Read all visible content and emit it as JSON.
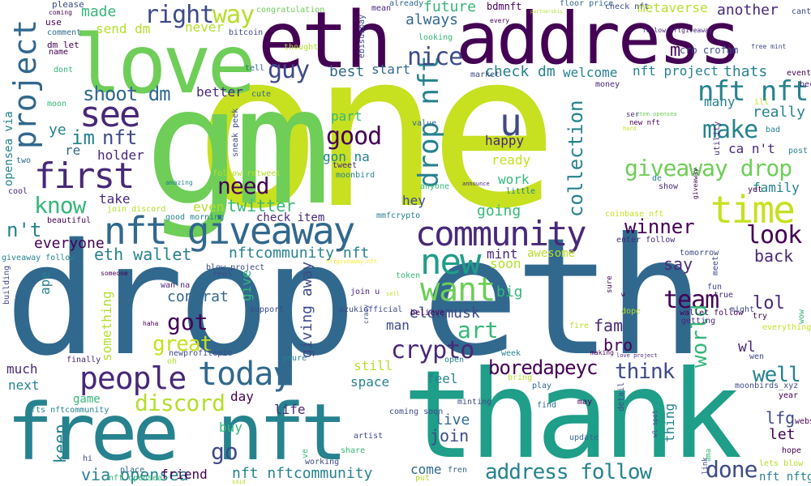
{
  "colors": {
    "background": "#ffffff",
    "palette": [
      "#440154",
      "#482878",
      "#3e4a89",
      "#31688e",
      "#26828e",
      "#1f9e89",
      "#35b779",
      "#6ece58",
      "#b5de2b",
      "#c7e020",
      "#fde725"
    ]
  },
  "words": [
    {
      "text": "one"
    },
    {
      "text": "gm"
    },
    {
      "text": "drop"
    },
    {
      "text": "eth"
    },
    {
      "text": "thank"
    },
    {
      "text": "address"
    },
    {
      "text": "eth"
    },
    {
      "text": "love"
    },
    {
      "text": "free nft"
    },
    {
      "text": "nft giveaway"
    },
    {
      "text": "community"
    },
    {
      "text": "time"
    },
    {
      "text": "people"
    },
    {
      "text": "today"
    },
    {
      "text": "first"
    },
    {
      "text": "new"
    },
    {
      "text": "want"
    },
    {
      "text": "see"
    },
    {
      "text": "project"
    },
    {
      "text": "nft nft"
    },
    {
      "text": "drop nft"
    },
    {
      "text": "u"
    },
    {
      "text": "giveaway drop"
    },
    {
      "text": "collection"
    },
    {
      "text": "right"
    },
    {
      "text": "way"
    },
    {
      "text": "crypto"
    },
    {
      "text": "make"
    },
    {
      "text": "good"
    },
    {
      "text": "look"
    },
    {
      "text": "team"
    },
    {
      "text": "know"
    },
    {
      "text": "need"
    },
    {
      "text": "guy"
    },
    {
      "text": "nice"
    },
    {
      "text": "shoot dm"
    },
    {
      "text": "im"
    },
    {
      "text": "nft"
    },
    {
      "text": "done"
    },
    {
      "text": "address follow"
    },
    {
      "text": "art"
    },
    {
      "text": "boredapeyc"
    },
    {
      "text": "go"
    },
    {
      "text": "discord"
    },
    {
      "text": "world"
    },
    {
      "text": "think"
    },
    {
      "text": "well"
    },
    {
      "text": "got"
    },
    {
      "text": "great"
    },
    {
      "text": "twitter"
    },
    {
      "text": "winner"
    },
    {
      "text": "n't"
    },
    {
      "text": "eth wallet"
    },
    {
      "text": "everyone"
    },
    {
      "text": "join"
    },
    {
      "text": "live"
    },
    {
      "text": "keep"
    },
    {
      "text": "via opensea"
    },
    {
      "text": "giving away"
    },
    {
      "text": "elonmusk"
    },
    {
      "text": "congrat"
    },
    {
      "text": "nftcommunity nft"
    },
    {
      "text": "nft nftcommunity"
    },
    {
      "text": "bro"
    },
    {
      "text": "fam"
    },
    {
      "text": "lol"
    },
    {
      "text": "say"
    },
    {
      "text": "back"
    },
    {
      "text": "lfg"
    },
    {
      "text": "let"
    },
    {
      "text": "wl"
    },
    {
      "text": "really"
    },
    {
      "text": "many"
    },
    {
      "text": "family"
    },
    {
      "text": "ca n't"
    },
    {
      "text": "thats"
    },
    {
      "text": "always"
    },
    {
      "text": "future"
    },
    {
      "text": "made"
    },
    {
      "text": "send dm"
    },
    {
      "text": "never"
    },
    {
      "text": "metaverse"
    },
    {
      "text": "another"
    },
    {
      "text": "check dm"
    },
    {
      "text": "welcome"
    },
    {
      "text": "nft project"
    },
    {
      "text": "best"
    },
    {
      "text": "start"
    },
    {
      "text": "better"
    },
    {
      "text": "holder"
    },
    {
      "text": "take"
    },
    {
      "text": "ye"
    },
    {
      "text": "re"
    },
    {
      "text": "hey"
    },
    {
      "text": "going"
    },
    {
      "text": "work"
    },
    {
      "text": "ready"
    },
    {
      "text": "happy"
    },
    {
      "text": "part"
    },
    {
      "text": "gon na"
    },
    {
      "text": "check item"
    },
    {
      "text": "mint"
    },
    {
      "text": "awesome"
    },
    {
      "text": "soon"
    },
    {
      "text": "big"
    },
    {
      "text": "give"
    },
    {
      "text": "something"
    },
    {
      "text": "ape"
    },
    {
      "text": "opensea via"
    },
    {
      "text": "man"
    },
    {
      "text": "still"
    },
    {
      "text": "space"
    },
    {
      "text": "feel"
    },
    {
      "text": "day"
    },
    {
      "text": "life"
    },
    {
      "text": "buy"
    },
    {
      "text": "friend"
    },
    {
      "text": "game"
    },
    {
      "text": "next"
    },
    {
      "text": "much"
    },
    {
      "text": "come"
    },
    {
      "text": "thing"
    },
    {
      "text": "even"
    },
    {
      "text": "m"
    },
    {
      "text": "cro crofam"
    },
    {
      "text": "bdmnft"
    },
    {
      "text": "please"
    },
    {
      "text": "comment"
    },
    {
      "text": "dm let"
    },
    {
      "text": "name"
    },
    {
      "text": "use"
    },
    {
      "text": "moon"
    },
    {
      "text": "dont"
    },
    {
      "text": "two"
    },
    {
      "text": "cool"
    },
    {
      "text": "beautiful"
    },
    {
      "text": "giveaway follow"
    },
    {
      "text": "building"
    },
    {
      "text": "finally"
    },
    {
      "text": "nfts nftcommunity"
    },
    {
      "text": "nft opensea"
    },
    {
      "text": "mean"
    },
    {
      "text": "already"
    },
    {
      "text": "congratulation"
    },
    {
      "text": "bitcoin"
    },
    {
      "text": "thought"
    },
    {
      "text": "tell"
    },
    {
      "text": "looking"
    },
    {
      "text": "ebisusbay"
    },
    {
      "text": "market"
    },
    {
      "text": "value"
    },
    {
      "text": "tweet"
    },
    {
      "text": "moonbird"
    },
    {
      "text": "anyone"
    },
    {
      "text": "little"
    },
    {
      "text": "mmfcrypto"
    },
    {
      "text": "join discord"
    },
    {
      "text": "good morning"
    },
    {
      "text": "follow retweet"
    },
    {
      "text": "sneak peek"
    },
    {
      "text": "amazing"
    },
    {
      "text": "cute"
    },
    {
      "text": "every"
    },
    {
      "text": "floor price"
    },
    {
      "text": "check nft"
    },
    {
      "text": "follow nftgiveaway"
    },
    {
      "text": "free mint"
    },
    {
      "text": "cant"
    },
    {
      "text": "money"
    },
    {
      "text": "event"
    },
    {
      "text": "become"
    },
    {
      "text": "ill"
    },
    {
      "text": "bad"
    },
    {
      "text": "post"
    },
    {
      "text": "de"
    },
    {
      "text": "show"
    },
    {
      "text": "new nft"
    },
    {
      "text": "ser"
    },
    {
      "text": "item opensea"
    },
    {
      "text": "hard"
    },
    {
      "text": "utility"
    },
    {
      "text": "yet"
    },
    {
      "text": "coinbase_nft"
    },
    {
      "text": "enter follow"
    },
    {
      "text": "sure"
    },
    {
      "text": "w"
    },
    {
      "text": "dope"
    },
    {
      "text": "meet"
    },
    {
      "text": "tomorrow"
    },
    {
      "text": "true"
    },
    {
      "text": "fun"
    },
    {
      "text": "wallet follow"
    },
    {
      "text": "might"
    },
    {
      "text": "try"
    },
    {
      "text": "getting"
    },
    {
      "text": "everything"
    },
    {
      "text": "wow"
    },
    {
      "text": "fire"
    },
    {
      "text": "making"
    },
    {
      "text": "wen"
    },
    {
      "text": "moonbirds_xyz"
    },
    {
      "text": "year"
    },
    {
      "text": "detail"
    },
    {
      "text": "find"
    },
    {
      "text": "may"
    },
    {
      "text": "update"
    },
    {
      "text": "wl spot"
    },
    {
      "text": "link"
    },
    {
      "text": "ama"
    },
    {
      "text": "hope"
    },
    {
      "text": "website"
    },
    {
      "text": "lets blow"
    },
    {
      "text": "nft nftgiveaway"
    },
    {
      "text": "fren"
    },
    {
      "text": "put"
    },
    {
      "text": "working"
    },
    {
      "text": "share"
    },
    {
      "text": "artist"
    },
    {
      "text": "coming soon"
    },
    {
      "text": "play"
    },
    {
      "text": "minting"
    },
    {
      "text": "bring"
    },
    {
      "text": "week"
    },
    {
      "text": "open"
    },
    {
      "text": "believe"
    },
    {
      "text": "azukiofficial"
    },
    {
      "text": "join u"
    },
    {
      "text": "lot"
    },
    {
      "text": "token"
    },
    {
      "text": "youre"
    },
    {
      "text": "oh"
    },
    {
      "text": "newprofilepic"
    },
    {
      "text": "support"
    },
    {
      "text": "wan na"
    },
    {
      "text": "haha"
    },
    {
      "text": "blow project"
    },
    {
      "text": "real"
    },
    {
      "text": "someone"
    },
    {
      "text": "place"
    },
    {
      "text": "hi"
    },
    {
      "text": "ve"
    },
    {
      "text": "crazy"
    },
    {
      "text": "sell"
    },
    {
      "text": "coming"
    },
    {
      "text": "nftgiveaway nft"
    },
    {
      "text": "love project"
    },
    {
      "text": "giveaway"
    },
    {
      "text": "said"
    },
    {
      "text": "partnership"
    },
    {
      "text": "announce"
    },
    {
      "text": "sure"
    },
    {
      "text": "nftgiveaway nftcommunity"
    },
    {
      "text": "follow nftgiveaway"
    },
    {
      "text": "ready"
    }
  ]
}
